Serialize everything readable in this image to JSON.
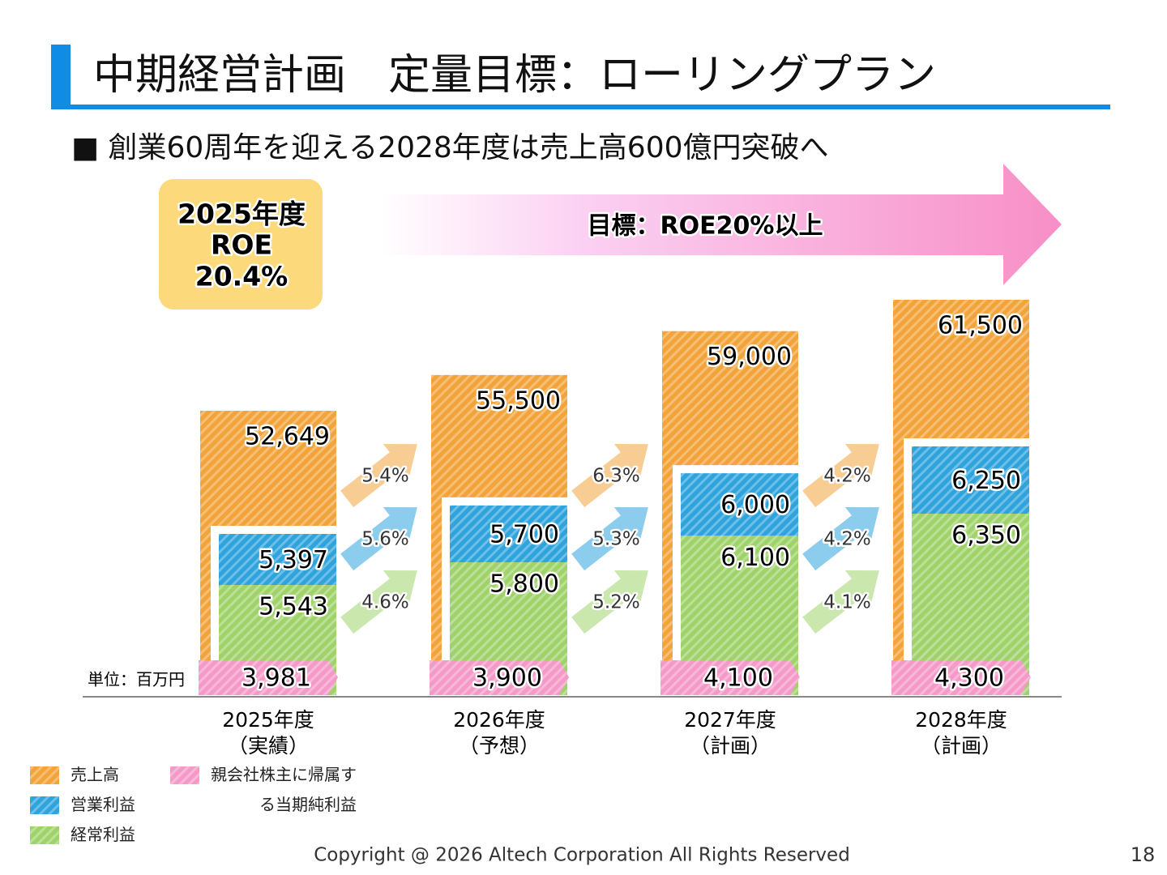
{
  "header": {
    "title": "中期経営計画　定量目標：ローリングプラン",
    "subtitle": "■ 創業60周年を迎える2028年度は売上高600億円突破へ"
  },
  "roe_box": {
    "lines": [
      "2025年度",
      "ROE",
      "20.4%"
    ]
  },
  "target": "目標：ROE20%以上",
  "footer": {
    "copyright": "Copyright @ 2026  Altech Corporation All Rights Reserved",
    "page": "18"
  },
  "chart_data": {
    "type": "bar",
    "unit": "単位：百万円",
    "categories": [
      "2025年度",
      "2026年度",
      "2027年度",
      "2028年度"
    ],
    "category_notes": [
      "（実績）",
      "（予想）",
      "（計画）",
      "（計画）"
    ],
    "series": [
      {
        "name": "売上高",
        "color": "#f2a43a",
        "values": [
          52649,
          55500,
          59000,
          61500
        ],
        "value_labels": [
          "52,649",
          "55,500",
          "59,000",
          "61,500"
        ],
        "growth_values": [
          5.4,
          6.3,
          4.2
        ],
        "growth_labels": [
          "5.4%",
          "6.3%",
          "4.2%"
        ]
      },
      {
        "name": "営業利益",
        "color": "#2ea3dc",
        "values": [
          5397,
          5700,
          6000,
          6250
        ],
        "value_labels": [
          "5,397",
          "5,700",
          "6,000",
          "6,250"
        ],
        "growth_values": [
          5.6,
          5.3,
          4.2
        ],
        "growth_labels": [
          "5.6%",
          "5.3%",
          "4.2%"
        ]
      },
      {
        "name": "経常利益",
        "color": "#9fd36a",
        "values": [
          5543,
          5800,
          6100,
          6350
        ],
        "value_labels": [
          "5,543",
          "5,800",
          "6,100",
          "6,350"
        ],
        "growth_values": [
          4.6,
          5.2,
          4.1
        ],
        "growth_labels": [
          "4.6%",
          "5.2%",
          "4.1%"
        ]
      },
      {
        "name": "親会社株主に帰属する当期純利益",
        "color": "#f59ac8",
        "values": [
          3981,
          3900,
          4100,
          4300
        ],
        "value_labels": [
          "3,981",
          "3,900",
          "4,100",
          "4,300"
        ]
      }
    ]
  }
}
